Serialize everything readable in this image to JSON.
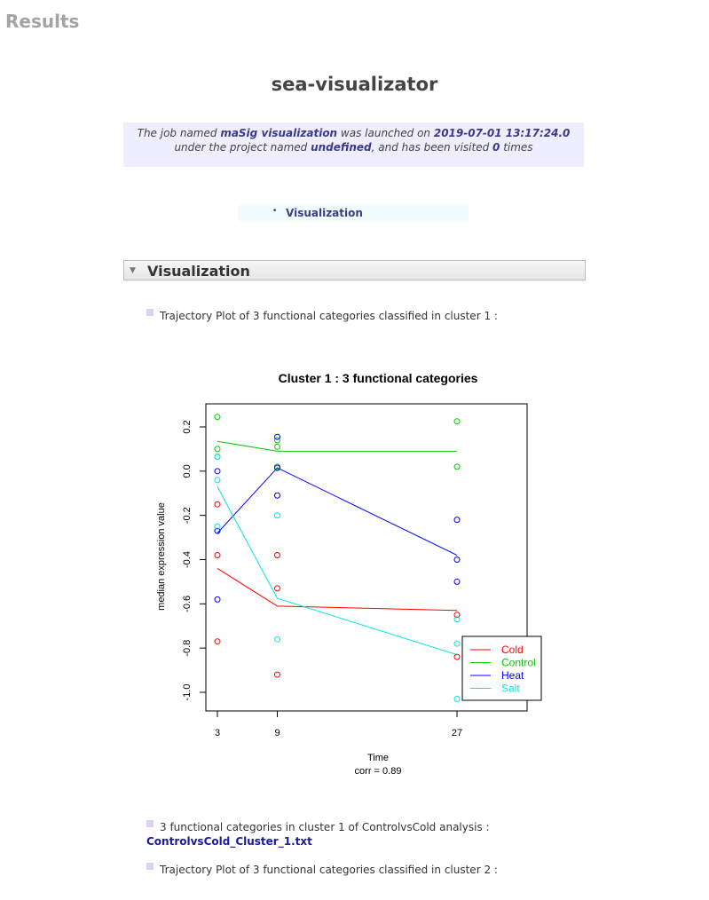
{
  "page": {
    "results_heading": "Results",
    "tool_name": "sea-visualizator"
  },
  "job": {
    "pre_name": "The job named ",
    "name": "maSig visualization",
    "pre_date": " was launched on ",
    "date": "2019-07-01 13:17:24.0",
    "pre_project": " under the project named ",
    "project": "undefined",
    "pre_visits": ", and has been visited ",
    "visits": "0",
    "post_visits": " times"
  },
  "toc": {
    "bullet": "•",
    "link": "Visualization"
  },
  "section": {
    "arrow": "▼",
    "title": "Visualization"
  },
  "items": {
    "plot1_caption": "Trajectory Plot of 3 functional categories classified in cluster 1 :",
    "file_caption": "3 functional categories in cluster 1 of ControlvsCold analysis :",
    "file_link": "ControlvsCold_Cluster_1.txt",
    "plot2_caption": "Trajectory Plot of 3 functional categories classified in cluster 2 :"
  },
  "chart_data": {
    "type": "line",
    "title": "Cluster 1 : 3 functional categories",
    "xlabel": "Time",
    "ylabel": "median expression value",
    "subtitle": "corr =  0.89",
    "x_ticks": [
      3,
      9,
      27
    ],
    "y_ticks": [
      "-1.0",
      "-0.8",
      "-0.6",
      "-0.4",
      "-0.2",
      "0.0",
      "0.2"
    ],
    "xlim": [
      3,
      27
    ],
    "ylim": [
      -1.0,
      0.2
    ],
    "legend_position": "bottom-right",
    "series": [
      {
        "name": "Cold",
        "color": "#ff0000",
        "line": [
          {
            "x": 3,
            "y": -0.44
          },
          {
            "x": 9,
            "y": -0.61
          },
          {
            "x": 27,
            "y": -0.63
          }
        ],
        "points": [
          {
            "x": 3,
            "y": -0.15
          },
          {
            "x": 3,
            "y": -0.38
          },
          {
            "x": 3,
            "y": -0.77
          },
          {
            "x": 9,
            "y": -0.38
          },
          {
            "x": 9,
            "y": -0.53
          },
          {
            "x": 9,
            "y": -0.92
          },
          {
            "x": 27,
            "y": -0.65
          },
          {
            "x": 27,
            "y": -0.84
          }
        ]
      },
      {
        "name": "Control",
        "color": "#00cc00",
        "line": [
          {
            "x": 3,
            "y": 0.135
          },
          {
            "x": 9,
            "y": 0.09
          },
          {
            "x": 27,
            "y": 0.09
          }
        ],
        "points": [
          {
            "x": 3,
            "y": 0.245
          },
          {
            "x": 3,
            "y": 0.1
          },
          {
            "x": 3,
            "y": 0.065
          },
          {
            "x": 9,
            "y": 0.14
          },
          {
            "x": 9,
            "y": 0.11
          },
          {
            "x": 9,
            "y": 0.02
          },
          {
            "x": 27,
            "y": 0.225
          },
          {
            "x": 27,
            "y": 0.02
          }
        ]
      },
      {
        "name": "Heat",
        "color": "#0000ff",
        "line": [
          {
            "x": 3,
            "y": -0.28
          },
          {
            "x": 9,
            "y": 0.015
          },
          {
            "x": 27,
            "y": -0.38
          }
        ],
        "points": [
          {
            "x": 3,
            "y": 0.0
          },
          {
            "x": 3,
            "y": -0.27
          },
          {
            "x": 3,
            "y": -0.58
          },
          {
            "x": 9,
            "y": 0.155
          },
          {
            "x": 9,
            "y": 0.015
          },
          {
            "x": 9,
            "y": -0.11
          },
          {
            "x": 27,
            "y": -0.22
          },
          {
            "x": 27,
            "y": -0.4
          },
          {
            "x": 27,
            "y": -0.5
          }
        ]
      },
      {
        "name": "Salt",
        "color": "#00e5e5",
        "line": [
          {
            "x": 3,
            "y": -0.07
          },
          {
            "x": 9,
            "y": -0.575
          },
          {
            "x": 27,
            "y": -0.83
          }
        ],
        "points": [
          {
            "x": 3,
            "y": 0.065
          },
          {
            "x": 3,
            "y": -0.04
          },
          {
            "x": 3,
            "y": -0.25
          },
          {
            "x": 9,
            "y": -0.2
          },
          {
            "x": 9,
            "y": -0.76
          },
          {
            "x": 27,
            "y": -0.67
          },
          {
            "x": 27,
            "y": -0.78
          },
          {
            "x": 27,
            "y": -1.03
          }
        ]
      }
    ]
  }
}
